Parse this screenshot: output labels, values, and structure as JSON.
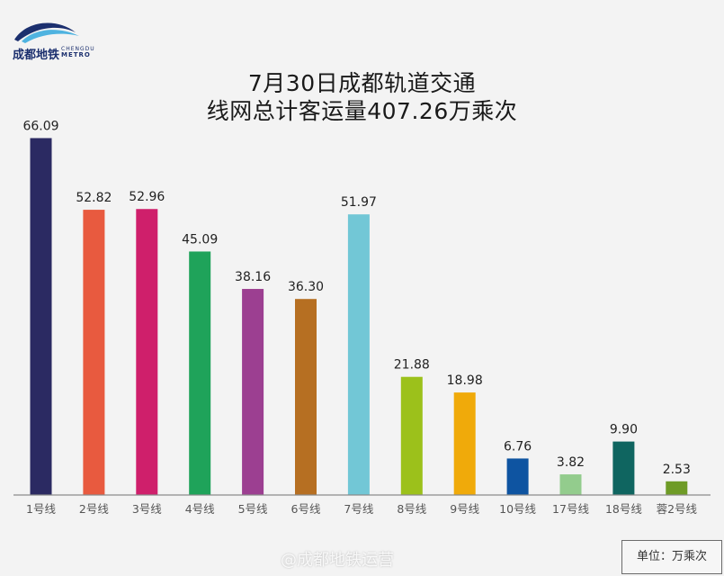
{
  "header": {
    "title_line1": "7月30日成都轨道交通",
    "title_line2": "线网总计客运量407.26万乘次",
    "logo_cn": "成都地铁",
    "logo_en_top": "CHENGDU",
    "logo_en_bottom": "METRO"
  },
  "unit_label": "单位：万乘次",
  "watermark": "@成都地铁运营",
  "chart_data": {
    "type": "bar",
    "title": "7月30日成都轨道交通线网总计客运量407.26万乘次",
    "xlabel": "",
    "ylabel": "",
    "ylim": [
      0,
      70
    ],
    "grid": false,
    "categories": [
      "1号线",
      "2号线",
      "3号线",
      "4号线",
      "5号线",
      "6号线",
      "7号线",
      "8号线",
      "9号线",
      "10号线",
      "17号线",
      "18号线",
      "蓉2号线"
    ],
    "values": [
      66.09,
      52.82,
      52.96,
      45.09,
      38.16,
      36.3,
      51.97,
      21.88,
      18.98,
      6.76,
      3.82,
      9.9,
      2.53
    ],
    "value_labels": [
      "66.09",
      "52.82",
      "52.96",
      "45.09",
      "38.16",
      "36.30",
      "51.97",
      "21.88",
      "18.98",
      "6.76",
      "3.82",
      "9.90",
      "2.53"
    ],
    "colors": [
      "#2b2a62",
      "#e85a3f",
      "#cf1f6b",
      "#1fa35a",
      "#9c3f91",
      "#b66f22",
      "#72c7d6",
      "#9cc11b",
      "#f0aa0a",
      "#0e54a1",
      "#93cc8d",
      "#0f6560",
      "#6e9b26"
    ]
  }
}
